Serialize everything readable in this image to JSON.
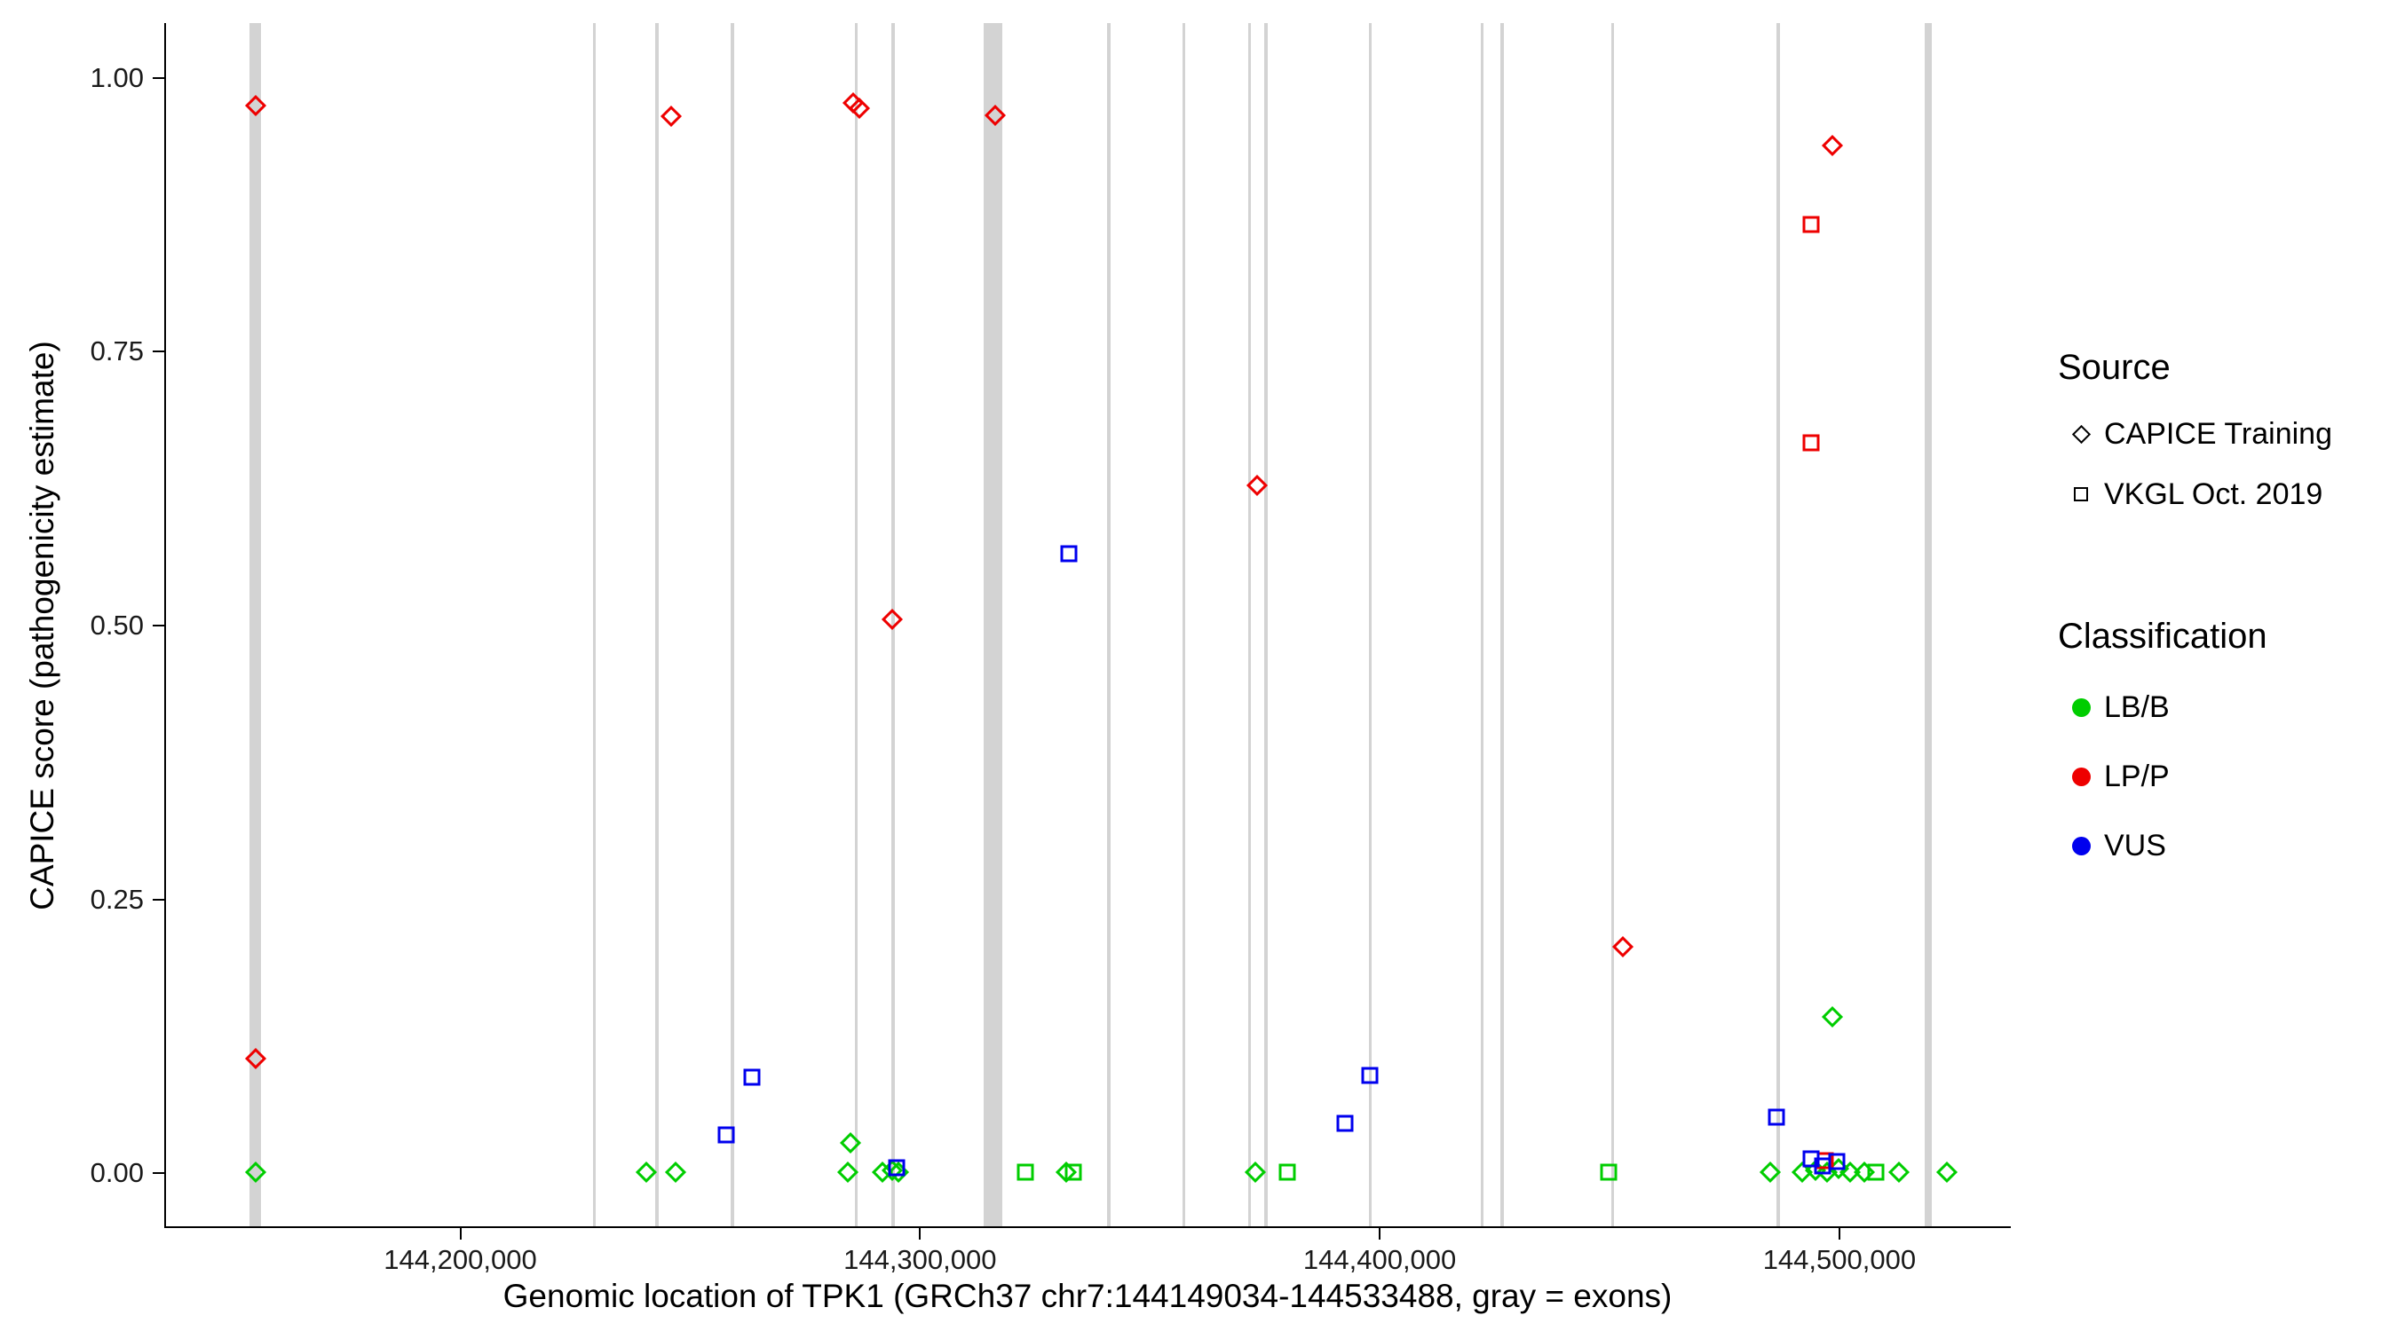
{
  "chart_data": {
    "type": "scatter",
    "title": "",
    "xlabel": "Genomic location of TPK1 (GRCh37 chr7:144149034-144533488, gray = exons)",
    "ylabel": "CAPICE score (pathogenicity estimate)",
    "x_domain": [
      144135600,
      144537300
    ],
    "y_domain": [
      -0.05,
      1.05
    ],
    "grid": "off",
    "legend_position": "right",
    "x_ticks": [
      {
        "value": 144200000,
        "label": "144,200,000"
      },
      {
        "value": 144300000,
        "label": "144,300,000"
      },
      {
        "value": 144400000,
        "label": "144,400,000"
      },
      {
        "value": 144500000,
        "label": "144,500,000"
      }
    ],
    "y_ticks": [
      {
        "value": 0.0,
        "label": "0.00"
      },
      {
        "value": 0.25,
        "label": "0.25"
      },
      {
        "value": 0.5,
        "label": "0.50"
      },
      {
        "value": 0.75,
        "label": "0.75"
      },
      {
        "value": 1.0,
        "label": "1.00"
      }
    ],
    "exon_color": "#d3d3d3",
    "exons": [
      [
        144155000,
        2400
      ],
      [
        144228800,
        700
      ],
      [
        144242400,
        700
      ],
      [
        144258800,
        700
      ],
      [
        144285800,
        700
      ],
      [
        144293800,
        700
      ],
      [
        144315500,
        4000
      ],
      [
        144340700,
        700
      ],
      [
        144357000,
        700
      ],
      [
        144371300,
        700
      ],
      [
        144374900,
        700
      ],
      [
        144397600,
        700
      ],
      [
        144421900,
        700
      ],
      [
        144426300,
        700
      ],
      [
        144450300,
        700
      ],
      [
        144486300,
        700
      ],
      [
        144518900,
        1600
      ]
    ],
    "series": [
      {
        "source": "CAPICE Training",
        "classification": "LP/P",
        "shape": "diamond",
        "color": "#ee0000",
        "points": [
          [
            144155000,
            0.975
          ],
          [
            144155000,
            0.105
          ],
          [
            144245500,
            0.965
          ],
          [
            144285000,
            0.977
          ],
          [
            144286500,
            0.972
          ],
          [
            144316000,
            0.966
          ],
          [
            144293500,
            0.506
          ],
          [
            144373000,
            0.628
          ],
          [
            144452500,
            0.207
          ],
          [
            144498000,
            0.938
          ]
        ]
      },
      {
        "source": "CAPICE Training",
        "classification": "LB/B",
        "shape": "diamond",
        "color": "#00cd00",
        "points": [
          [
            144155000,
            0.001
          ],
          [
            144240000,
            0.001
          ],
          [
            144246500,
            0.001
          ],
          [
            144284500,
            0.028
          ],
          [
            144284000,
            0.001
          ],
          [
            144291500,
            0.001
          ],
          [
            144293500,
            0.003
          ],
          [
            144295000,
            0.001
          ],
          [
            144331500,
            0.001
          ],
          [
            144372500,
            0.001
          ],
          [
            144484500,
            0.001
          ],
          [
            144491500,
            0.001
          ],
          [
            144494500,
            0.003
          ],
          [
            144497000,
            0.001
          ],
          [
            144499500,
            0.004
          ],
          [
            144502000,
            0.001
          ],
          [
            144505000,
            0.001
          ],
          [
            144512500,
            0.001
          ],
          [
            144498000,
            0.143
          ],
          [
            144523000,
            0.001
          ]
        ]
      },
      {
        "source": "VKGL Oct. 2019",
        "classification": "LP/P",
        "shape": "square",
        "color": "#ee0000",
        "points": [
          [
            144493500,
            0.866
          ],
          [
            144493500,
            0.667
          ],
          [
            144496500,
            0.012
          ]
        ]
      },
      {
        "source": "VKGL Oct. 2019",
        "classification": "LB/B",
        "shape": "square",
        "color": "#00cd00",
        "points": [
          [
            144322500,
            0.001
          ],
          [
            144333000,
            0.001
          ],
          [
            144379500,
            0.001
          ],
          [
            144449500,
            0.001
          ],
          [
            144507500,
            0.001
          ]
        ]
      },
      {
        "source": "VKGL Oct. 2019",
        "classification": "VUS",
        "shape": "square",
        "color": "#0000ee",
        "points": [
          [
            144257500,
            0.035
          ],
          [
            144263000,
            0.088
          ],
          [
            144294500,
            0.005
          ],
          [
            144332000,
            0.566
          ],
          [
            144392000,
            0.046
          ],
          [
            144397500,
            0.089
          ],
          [
            144486000,
            0.051
          ],
          [
            144493500,
            0.013
          ],
          [
            144496000,
            0.007
          ],
          [
            144499000,
            0.011
          ]
        ]
      }
    ]
  },
  "legend": {
    "source_title": "Source",
    "source_items": [
      {
        "label": "CAPICE Training",
        "shape": "diamond"
      },
      {
        "label": "VKGL Oct. 2019",
        "shape": "square"
      }
    ],
    "classification_title": "Classification",
    "classification_items": [
      {
        "label": "LB/B",
        "color": "#00cd00"
      },
      {
        "label": "LP/P",
        "color": "#ee0000"
      },
      {
        "label": "VUS",
        "color": "#0000ee"
      }
    ]
  }
}
